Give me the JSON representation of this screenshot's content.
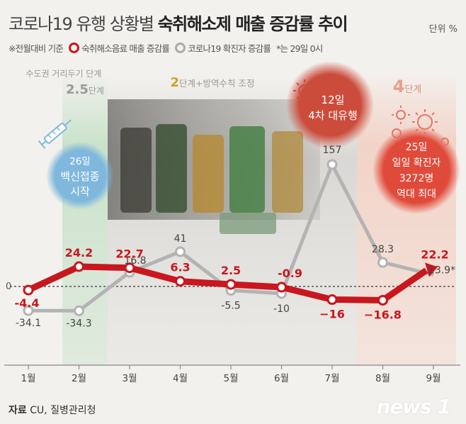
{
  "header": {
    "title_plain": "코로나19 유행 상황별 ",
    "title_bold": "숙취해소제 매출 증감률 추이",
    "unit": "단위 %"
  },
  "legend": {
    "basis": "※전월대비 기준",
    "red_label": "숙취해소음료 매출 증감률",
    "grey_label": "코로나19 확진자 증감률",
    "note": "*는 29일 0시"
  },
  "phases": {
    "phase1_label": "수도권 거리두기 단계",
    "phase1_level": "2.5",
    "phase1_suffix": "단계",
    "phase2_level": "2",
    "phase2_suffix": "단계+방역수칙 조정",
    "phase3_level": "4",
    "phase3_suffix": "단계"
  },
  "callouts": {
    "vaccine": [
      "26일",
      "백신접종",
      "시작"
    ],
    "wave4": [
      "12일",
      "4차 대유행"
    ],
    "record": [
      "25일",
      "일일 확진자",
      "3272명",
      "역대 최대"
    ]
  },
  "colors": {
    "red": "#c8171e",
    "grey": "#b3b3b3",
    "phase_green": "#a8d6ae",
    "phase_pink": "#f2c6b6",
    "vaccine_blue": "#7fb8dc",
    "wave_red": "#cc4c3c",
    "record_red": "#e04a3a"
  },
  "chart_data": {
    "type": "line",
    "categories": [
      "1월",
      "2월",
      "3월",
      "4월",
      "5월",
      "6월",
      "7월",
      "8월",
      "9월"
    ],
    "series": [
      {
        "name": "숙취해소음료 매출 증감률",
        "color": "#c8171e",
        "values": [
          -4.4,
          24.2,
          22.7,
          6.3,
          2.5,
          -0.9,
          -16,
          -16.8,
          22.2
        ],
        "labels": [
          "-4.4",
          "24.2",
          "22.7",
          "6.3",
          "2.5",
          "-0.9",
          "−16",
          "−16.8",
          "22.2"
        ]
      },
      {
        "name": "코로나19 확진자 증감률",
        "color": "#b3b3b3",
        "values": [
          -34.1,
          -34.3,
          16.8,
          41,
          -5.5,
          -10,
          157,
          28.3,
          13.9
        ],
        "labels": [
          "-34.1",
          "-34.3",
          "16.8",
          "41",
          "-5.5",
          "-10",
          "157",
          "28.3",
          "13.9*"
        ]
      }
    ],
    "zero_label": "0"
  },
  "source": {
    "label": "자료",
    "text": " CU, 질병관리청"
  },
  "brand": {
    "logo": "news 1"
  }
}
